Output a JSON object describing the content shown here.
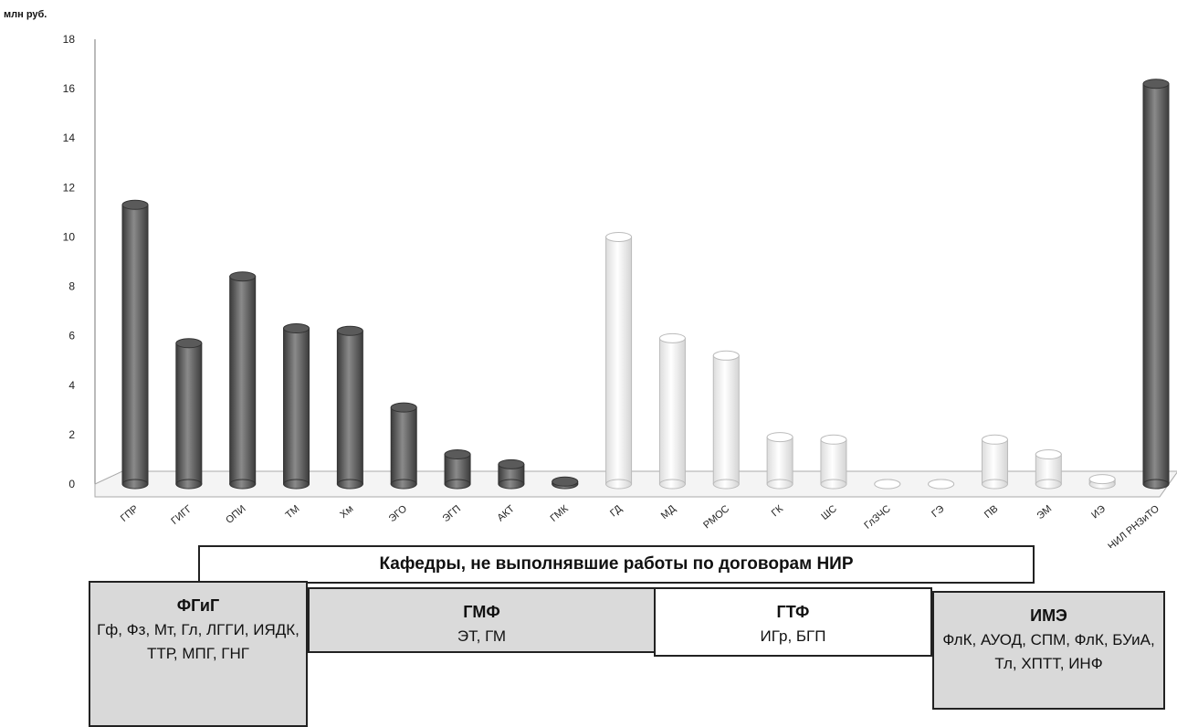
{
  "unit_label": "млн руб.",
  "chart_data": {
    "type": "bar",
    "ylim": [
      0,
      18
    ],
    "yticks": [
      0,
      2,
      4,
      6,
      8,
      10,
      12,
      14,
      16,
      18
    ],
    "categories": [
      "ГПР",
      "ГИГГ",
      "ОПИ",
      "ТМ",
      "Хм",
      "ЭГО",
      "ЭГП",
      "АКТ",
      "ГМК",
      "ГД",
      "МД",
      "РМОС",
      "ГК",
      "ШС",
      "ГлЗЧС",
      "ГЭ",
      "ПВ",
      "ЭМ",
      "ИЭ",
      "НИЛ РНЗиТО"
    ],
    "values": [
      11.3,
      5.7,
      8.4,
      6.3,
      6.2,
      3.1,
      1.2,
      0.8,
      0.1,
      10.0,
      5.9,
      5.2,
      1.9,
      1.8,
      0.0,
      0.0,
      1.8,
      1.2,
      0.2,
      16.2
    ],
    "colors": [
      "#6b6b6b",
      "#6b6b6b",
      "#6b6b6b",
      "#6b6b6b",
      "#6b6b6b",
      "#6b6b6b",
      "#6b6b6b",
      "#6b6b6b",
      "#6b6b6b",
      "#fafafa",
      "#fafafa",
      "#fafafa",
      "#fafafa",
      "#fafafa",
      "#fafafa",
      "#fafafa",
      "#f2f2f2",
      "#f2f2f2",
      "#f2f2f2",
      "#6b6b6b"
    ],
    "grid": false
  },
  "banner": {
    "text": "Кафедры, не выполнявшие работы по договорам НИР"
  },
  "faculties": {
    "fgig": {
      "name": "ФГиГ",
      "list": "Гф, Фз, Мт, Гл, ЛГГИ, ИЯДК, ТТР, МПГ, ГНГ"
    },
    "gmf": {
      "name": "ГМФ",
      "list": "ЭТ, ГМ"
    },
    "gtf": {
      "name": "ГТФ",
      "list": "ИГр, БГП"
    },
    "ime": {
      "name": "ИМЭ",
      "list": "ФлК, АУОД, СПМ, ФлК, БУиА, Тл, ХПТТ, ИНФ"
    }
  }
}
